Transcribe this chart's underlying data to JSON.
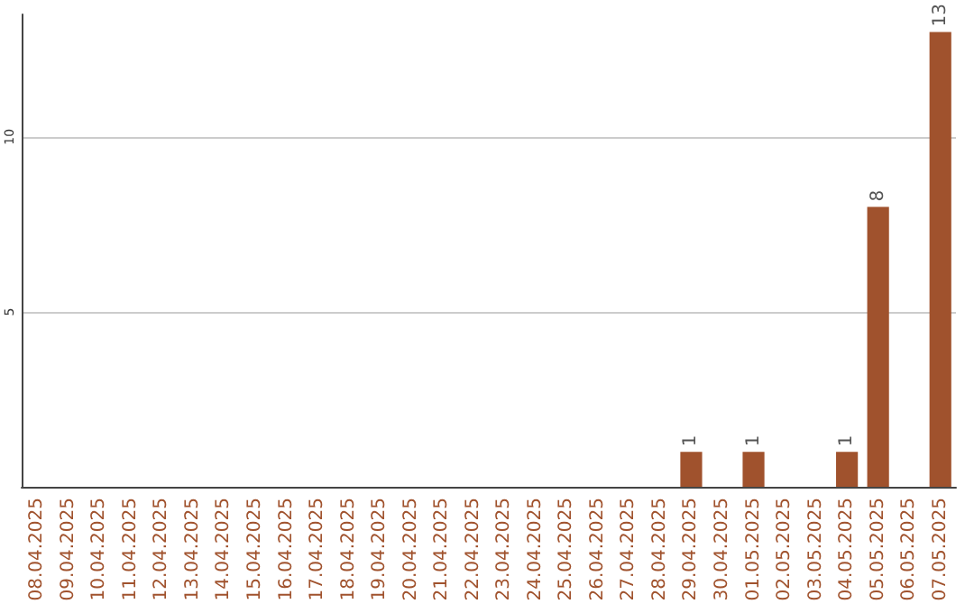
{
  "chart_data": {
    "type": "bar",
    "categories": [
      "08.04.2025",
      "09.04.2025",
      "10.04.2025",
      "11.04.2025",
      "12.04.2025",
      "13.04.2025",
      "14.04.2025",
      "15.04.2025",
      "16.04.2025",
      "17.04.2025",
      "18.04.2025",
      "19.04.2025",
      "20.04.2025",
      "21.04.2025",
      "22.04.2025",
      "23.04.2025",
      "24.04.2025",
      "25.04.2025",
      "26.04.2025",
      "27.04.2025",
      "28.04.2025",
      "29.04.2025",
      "30.04.2025",
      "01.05.2025",
      "02.05.2025",
      "03.05.2025",
      "04.05.2025",
      "05.05.2025",
      "06.05.2025",
      "07.05.2025"
    ],
    "values": [
      0,
      0,
      0,
      0,
      0,
      0,
      0,
      0,
      0,
      0,
      0,
      0,
      0,
      0,
      0,
      0,
      0,
      0,
      0,
      0,
      0,
      1,
      0,
      1,
      0,
      0,
      1,
      8,
      0,
      13
    ],
    "value_labels": [
      null,
      null,
      null,
      null,
      null,
      null,
      null,
      null,
      null,
      null,
      null,
      null,
      null,
      null,
      null,
      null,
      null,
      null,
      null,
      null,
      null,
      "1",
      null,
      "1",
      null,
      null,
      "1",
      "8",
      null,
      "13"
    ],
    "color": "#a0522d",
    "ylim": [
      0,
      13.5
    ],
    "yticks": [
      5,
      10
    ],
    "grid": "y"
  }
}
